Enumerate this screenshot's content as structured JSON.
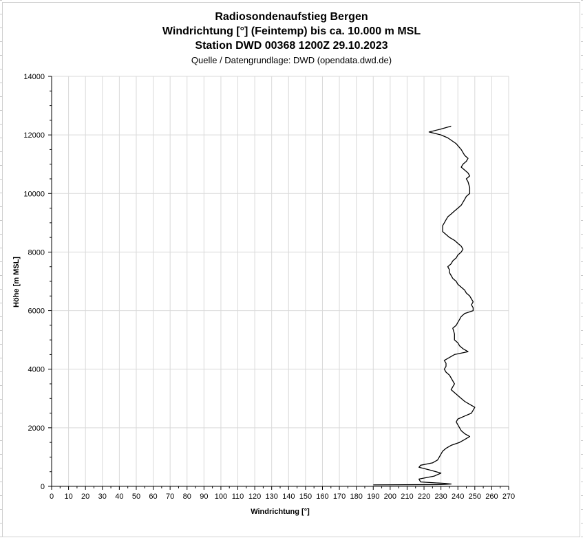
{
  "chart_data": {
    "type": "line",
    "title": "Radiosondenaufstieg Bergen",
    "subtitle_lines": [
      "Windrichtung [°] (Feintemp) bis ca. 10.000 m MSL",
      "Station DWD 00368 1200Z 29.10.2023"
    ],
    "source": "Quelle / Datengrundlage: DWD (opendata.dwd.de)",
    "xlabel": "Windrichtung [°]",
    "ylabel": "Höhe [m MSL]",
    "xlim": [
      0,
      270
    ],
    "ylim": [
      0,
      14000
    ],
    "xticks": [
      0,
      10,
      20,
      30,
      40,
      50,
      60,
      70,
      80,
      90,
      100,
      110,
      120,
      130,
      140,
      150,
      160,
      170,
      180,
      190,
      200,
      210,
      220,
      230,
      240,
      250,
      260,
      270
    ],
    "yticks": [
      0,
      2000,
      4000,
      6000,
      8000,
      10000,
      12000,
      14000
    ],
    "grid": true,
    "series": [
      {
        "color": "#000000",
        "points": [
          [
            190,
            50
          ],
          [
            230,
            60
          ],
          [
            236,
            80
          ],
          [
            232,
            100
          ],
          [
            218,
            150
          ],
          [
            217,
            250
          ],
          [
            226,
            350
          ],
          [
            230,
            450
          ],
          [
            224,
            550
          ],
          [
            217,
            650
          ],
          [
            218,
            720
          ],
          [
            225,
            800
          ],
          [
            228,
            900
          ],
          [
            229,
            1000
          ],
          [
            230,
            1100
          ],
          [
            231,
            1200
          ],
          [
            233,
            1300
          ],
          [
            236,
            1400
          ],
          [
            241,
            1500
          ],
          [
            244,
            1600
          ],
          [
            247,
            1700
          ],
          [
            244,
            1800
          ],
          [
            242,
            1900
          ],
          [
            241,
            2000
          ],
          [
            240,
            2100
          ],
          [
            239,
            2200
          ],
          [
            240,
            2300
          ],
          [
            244,
            2400
          ],
          [
            248,
            2500
          ],
          [
            249,
            2600
          ],
          [
            250,
            2700
          ],
          [
            247,
            2800
          ],
          [
            244,
            2900
          ],
          [
            242,
            3000
          ],
          [
            240,
            3100
          ],
          [
            238,
            3200
          ],
          [
            236,
            3300
          ],
          [
            237,
            3400
          ],
          [
            238,
            3500
          ],
          [
            237,
            3600
          ],
          [
            236,
            3700
          ],
          [
            235,
            3800
          ],
          [
            233,
            3900
          ],
          [
            232,
            4000
          ],
          [
            233,
            4100
          ],
          [
            233,
            4200
          ],
          [
            232,
            4300
          ],
          [
            235,
            4400
          ],
          [
            238,
            4500
          ],
          [
            246,
            4600
          ],
          [
            243,
            4700
          ],
          [
            241,
            4800
          ],
          [
            240,
            4900
          ],
          [
            238,
            5000
          ],
          [
            238,
            5200
          ],
          [
            237,
            5400
          ],
          [
            239,
            5500
          ],
          [
            240,
            5600
          ],
          [
            241,
            5700
          ],
          [
            242,
            5800
          ],
          [
            244,
            5900
          ],
          [
            249,
            6000
          ],
          [
            249,
            6100
          ],
          [
            248,
            6200
          ],
          [
            249,
            6300
          ],
          [
            248,
            6400
          ],
          [
            247,
            6500
          ],
          [
            245,
            6600
          ],
          [
            244,
            6700
          ],
          [
            242,
            6800
          ],
          [
            240,
            6900
          ],
          [
            239,
            7000
          ],
          [
            237,
            7100
          ],
          [
            236,
            7200
          ],
          [
            235,
            7300
          ],
          [
            235,
            7400
          ],
          [
            234,
            7500
          ],
          [
            236,
            7600
          ],
          [
            237,
            7700
          ],
          [
            239,
            7800
          ],
          [
            240,
            7900
          ],
          [
            242,
            8000
          ],
          [
            243,
            8100
          ],
          [
            242,
            8200
          ],
          [
            240,
            8300
          ],
          [
            238,
            8400
          ],
          [
            235,
            8500
          ],
          [
            233,
            8600
          ],
          [
            231,
            8700
          ],
          [
            231,
            8800
          ],
          [
            231,
            8900
          ],
          [
            232,
            9000
          ],
          [
            233,
            9100
          ],
          [
            234,
            9200
          ],
          [
            236,
            9300
          ],
          [
            238,
            9400
          ],
          [
            240,
            9500
          ],
          [
            242,
            9600
          ],
          [
            243,
            9700
          ],
          [
            244,
            9800
          ],
          [
            245,
            9900
          ],
          [
            247,
            10000
          ],
          [
            247,
            10200
          ],
          [
            246,
            10400
          ],
          [
            245,
            10500
          ],
          [
            247,
            10600
          ],
          [
            246,
            10700
          ],
          [
            244,
            10800
          ],
          [
            242,
            10900
          ],
          [
            243,
            11000
          ],
          [
            245,
            11100
          ],
          [
            246,
            11200
          ],
          [
            244,
            11300
          ],
          [
            242,
            11500
          ],
          [
            239,
            11700
          ],
          [
            234,
            11900
          ],
          [
            230,
            12000
          ],
          [
            223,
            12100
          ],
          [
            230,
            12200
          ],
          [
            236,
            12300
          ]
        ]
      }
    ]
  }
}
